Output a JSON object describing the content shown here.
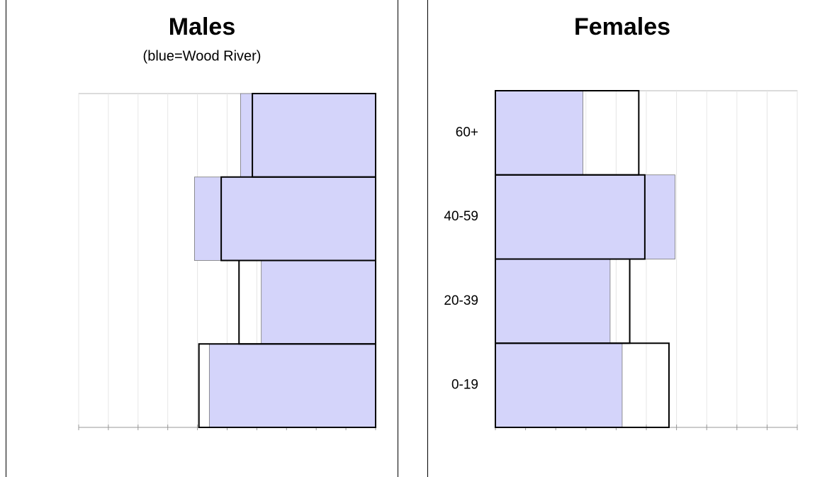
{
  "chart_data": [
    {
      "type": "hbar",
      "title": "Males",
      "subtitle": "(blue=Wood River)",
      "categories": [
        null,
        null,
        null,
        null
      ],
      "series": [
        {
          "color": "#d4d4fa",
          "values": [
            11.2,
            7.7,
            12.2,
            9.1
          ]
        },
        {
          "color": "#000000",
          "values": [
            11.9,
            9.2,
            10.4,
            8.3
          ]
        }
      ],
      "xlim": [
        0,
        20
      ],
      "xticks": [
        0,
        2,
        4,
        6,
        8,
        10,
        12,
        14,
        16,
        18,
        20
      ],
      "x_reversed": true,
      "grid": true
    },
    {
      "type": "hbar",
      "title": "Females",
      "categories": [
        "0-19",
        "20-39",
        "40-59",
        "60+"
      ],
      "series": [
        {
          "color": "#d4d4fa",
          "values": [
            8.4,
            7.6,
            11.9,
            5.8
          ]
        },
        {
          "color": "#000000",
          "values": [
            11.5,
            8.9,
            9.9,
            9.5
          ]
        }
      ],
      "xlim": [
        0,
        20
      ],
      "xticks": [
        0,
        2,
        4,
        6,
        8,
        10,
        12,
        14,
        16,
        18,
        20
      ],
      "x_reversed": false,
      "grid": true
    }
  ]
}
